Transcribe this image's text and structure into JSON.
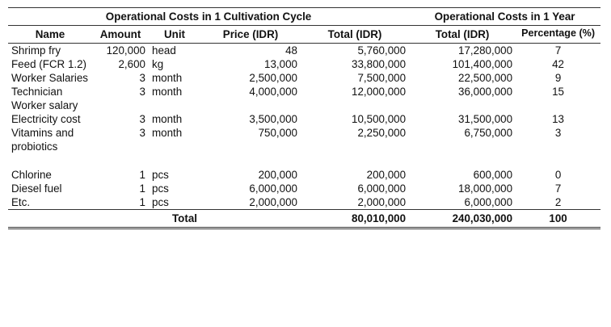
{
  "group_headers": {
    "cycle": "Operational Costs in 1 Cultivation Cycle",
    "year": "Operational Costs in 1 Year"
  },
  "columns": {
    "name": "Name",
    "amount": "Amount",
    "unit": "Unit",
    "price": "Price (IDR)",
    "total_cycle": "Total (IDR)",
    "total_year": "Total (IDR)",
    "percentage": "Percentage (%)"
  },
  "rows": [
    {
      "name": "Shrimp fry",
      "amount": "120,000",
      "unit": "head",
      "price": "48",
      "total_cycle": "5,760,000",
      "total_year": "17,280,000",
      "percentage": "7"
    },
    {
      "name": "Feed (FCR 1.2)",
      "amount": "2,600",
      "unit": "kg",
      "price": "13,000",
      "total_cycle": "33,800,000",
      "total_year": "101,400,000",
      "percentage": "42"
    },
    {
      "name": "Worker Salaries",
      "amount": "3",
      "unit": "month",
      "price": "2,500,000",
      "total_cycle": "7,500,000",
      "total_year": "22,500,000",
      "percentage": "9"
    },
    {
      "name": "Technician Worker salary",
      "amount": "3",
      "unit": "month",
      "price": "4,000,000",
      "total_cycle": "12,000,000",
      "total_year": "36,000,000",
      "percentage": "15"
    },
    {
      "name": "Electricity cost",
      "amount": "3",
      "unit": "month",
      "price": "3,500,000",
      "total_cycle": "10,500,000",
      "total_year": "31,500,000",
      "percentage": "13"
    },
    {
      "name": "Vitamins and probiotics",
      "amount": "3",
      "unit": "month",
      "price": "750,000",
      "total_cycle": "2,250,000",
      "total_year": "6,750,000",
      "percentage": "3"
    },
    {
      "name": "Chlorine",
      "amount": "1",
      "unit": "pcs",
      "price": "200,000",
      "total_cycle": "200,000",
      "total_year": "600,000",
      "percentage": "0"
    },
    {
      "name": "Diesel fuel",
      "amount": "1",
      "unit": "pcs",
      "price": "6,000,000",
      "total_cycle": "6,000,000",
      "total_year": "18,000,000",
      "percentage": "7"
    },
    {
      "name": "Etc.",
      "amount": "1",
      "unit": "pcs",
      "price": "2,000,000",
      "total_cycle": "2,000,000",
      "total_year": "6,000,000",
      "percentage": "2"
    }
  ],
  "total": {
    "label": "Total",
    "total_cycle": "80,010,000",
    "total_year": "240,030,000",
    "percentage": "100"
  }
}
